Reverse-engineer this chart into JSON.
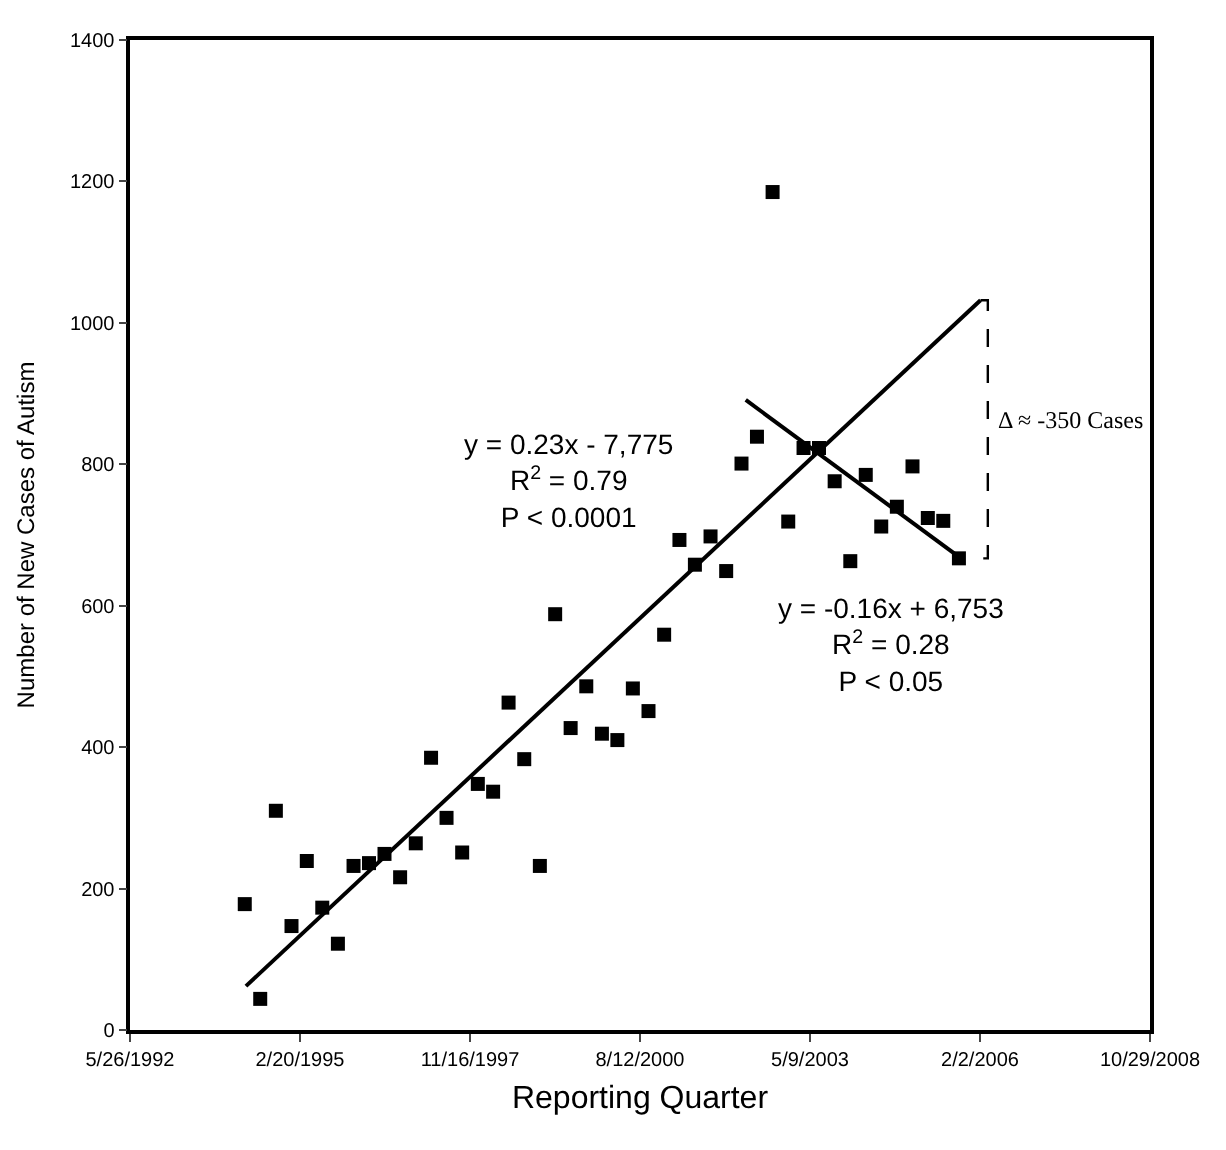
{
  "chart_data": {
    "type": "scatter",
    "xlabel": "Reporting Quarter",
    "ylabel": "Number of New Cases of Autism",
    "x": [
      "1994-04-01",
      "1994-07-01",
      "1994-10-01",
      "1995-01-01",
      "1995-04-01",
      "1995-07-01",
      "1995-10-01",
      "1996-01-01",
      "1996-04-01",
      "1996-07-01",
      "1996-10-01",
      "1997-01-01",
      "1997-04-01",
      "1997-07-01",
      "1997-10-01",
      "1998-01-01",
      "1998-04-01",
      "1998-07-01",
      "1998-10-01",
      "1999-01-01",
      "1999-04-01",
      "1999-07-01",
      "1999-10-01",
      "2000-01-01",
      "2000-04-01",
      "2000-07-01",
      "2000-10-01",
      "2001-01-01",
      "2001-04-01",
      "2001-07-01",
      "2001-10-01",
      "2002-01-01",
      "2002-04-01",
      "2002-07-01",
      "2002-10-01",
      "2003-01-01",
      "2003-04-01",
      "2003-07-01",
      "2003-10-01",
      "2004-01-01",
      "2004-04-01",
      "2004-07-01",
      "2004-10-01",
      "2005-01-01",
      "2005-04-01",
      "2005-07-01",
      "2005-10-01"
    ],
    "series": [
      {
        "color": "#000000",
        "marker": "square",
        "values": [
          178,
          44,
          310,
          147,
          239,
          173,
          122,
          232,
          236,
          249,
          216,
          264,
          385,
          300,
          251,
          348,
          337,
          463,
          383,
          232,
          588,
          427,
          486,
          419,
          410,
          483,
          451,
          559,
          693,
          658,
          698,
          649,
          801,
          839,
          1185,
          719,
          823,
          823,
          776,
          663,
          785,
          712,
          740,
          797,
          724,
          720,
          667
        ]
      },
      {
        "type": "line",
        "color": "#000000",
        "line_style": "solid",
        "x": [
          "1994-04-08",
          "2006-02-05"
        ],
        "values": [
          62,
          1032
        ]
      },
      {
        "type": "line",
        "color": "#000000",
        "line_style": "solid",
        "x": [
          "2002-04-26",
          "2005-10-13"
        ],
        "values": [
          891,
          667
        ]
      },
      {
        "type": "line",
        "color": "#000000",
        "line_style": "dashed",
        "x": [
          "2006-02-05",
          "2006-03-20",
          "2006-03-20",
          "2006-02-05"
        ],
        "values": [
          1032,
          1032,
          667,
          667
        ]
      }
    ],
    "annotations": [
      "y = 0.23x - 7,775\nR$^{2}$ = 0.79\nP < 0.0001",
      "y = -0.16x + 6,753\nR$^{2}$ = 0.28\nP < 0.05",
      {
        "text": "Δ ≈ -350 Cases",
        "x": "2006-04-30",
        "y": 862
      }
    ],
    "xlim": [
      "1992-05-26",
      "2008-10-29"
    ],
    "xticks": [
      {
        "value": "1992-05-26",
        "label": "5/26/1992"
      },
      {
        "value": "1995-02-20",
        "label": "2/20/1995"
      },
      {
        "value": "1997-11-16",
        "label": "11/16/1997"
      },
      {
        "value": "2000-08-12",
        "label": "8/12/2000"
      },
      {
        "value": "2003-05-09",
        "label": "5/9/2003"
      },
      {
        "value": "2006-02-02",
        "label": "2/2/2006"
      },
      {
        "value": "2008-10-29",
        "label": "10/29/2008"
      }
    ],
    "ylim": [
      0,
      1400
    ],
    "yticks": [
      0,
      200,
      400,
      600,
      800,
      1000,
      1200,
      1400
    ]
  }
}
